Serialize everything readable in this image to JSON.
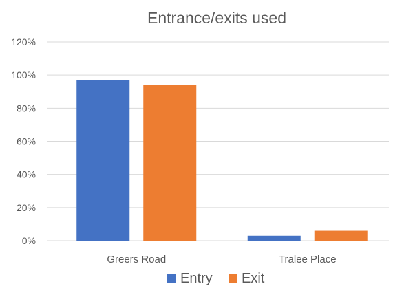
{
  "chart_data": {
    "type": "bar",
    "title": "Entrance/exits used",
    "categories": [
      "Greers Road",
      "Tralee Place"
    ],
    "series": [
      {
        "name": "Entry",
        "values": [
          0.97,
          0.03
        ],
        "color": "#4472C4"
      },
      {
        "name": "Exit",
        "values": [
          0.94,
          0.06
        ],
        "color": "#ED7D31"
      }
    ],
    "ylim": [
      0,
      1.2
    ],
    "yticks": [
      "0%",
      "20%",
      "40%",
      "60%",
      "80%",
      "100%",
      "120%"
    ],
    "grid": true,
    "legend_position": "bottom",
    "gridline_color": "#D9D9D9",
    "text_color": "#595959"
  }
}
